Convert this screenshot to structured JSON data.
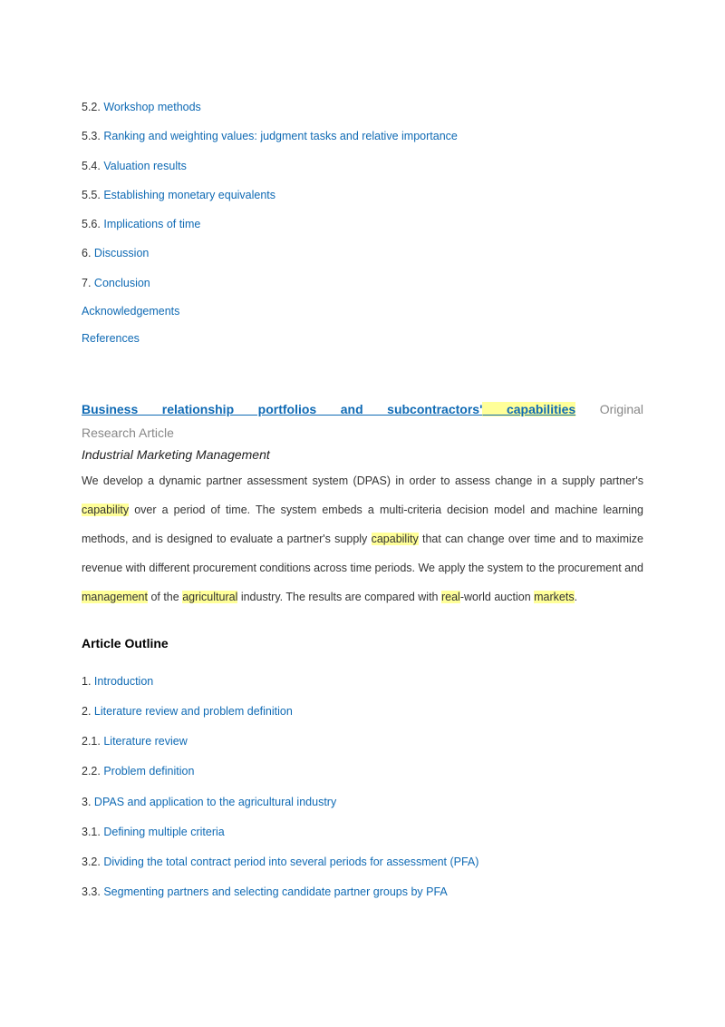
{
  "colors": {
    "link": "#0f6ab4",
    "body_text": "#333333",
    "muted": "#888888",
    "highlight_bg": "#ffff99",
    "background": "#ffffff"
  },
  "top_outline": [
    {
      "num": "5.2.",
      "label": "Workshop methods"
    },
    {
      "num": "5.3.",
      "label": "Ranking and weighting values: judgment tasks and relative importance"
    },
    {
      "num": "5.4.",
      "label": "Valuation results"
    },
    {
      "num": "5.5.",
      "label": "Establishing monetary equivalents"
    },
    {
      "num": "5.6.",
      "label": "Implications of time"
    },
    {
      "num": "6.",
      "label": "Discussion"
    },
    {
      "num": "7.",
      "label": "Conclusion"
    }
  ],
  "top_outline_tail": {
    "ack": "Acknowledgements",
    "refs": "References"
  },
  "article": {
    "title_pre": "Business relationship portfolios and subcontractors'",
    "title_hl": " capabilities",
    "subtype_inline": " Original",
    "subtype_line2": "Research Article",
    "journal": "Industrial Marketing Management",
    "abstract_parts": {
      "p1": "We develop a dynamic partner assessment system (DPAS) in order to assess change in a supply partner's ",
      "hl1": "capability",
      "p2": " over a period of time. The system embeds a multi-criteria decision model and machine learning methods, and is designed to evaluate a partner's supply ",
      "hl2": "capability",
      "p3": " that can change over time and to maximize revenue with different procurement conditions across time periods. We apply the system to the procurement and ",
      "hl3": "management",
      "p4": " of the ",
      "hl4": "agricultural",
      "p5": " industry. The results are compared with ",
      "hl5": "real",
      "p6": "-world auction ",
      "hl6": "markets",
      "p7": "."
    }
  },
  "outline_heading": "Article Outline",
  "bottom_outline": [
    {
      "num": "1.",
      "label": "Introduction"
    },
    {
      "num": "2.",
      "label": "Literature review and problem definition"
    },
    {
      "num": "2.1.",
      "label": "Literature review"
    },
    {
      "num": "2.2.",
      "label": "Problem definition"
    },
    {
      "num": "3.",
      "label": "DPAS and application to the agricultural industry"
    },
    {
      "num": "3.1.",
      "label": "Defining multiple criteria"
    },
    {
      "num": "3.2.",
      "label": "Dividing the total contract period into several periods for assessment (PFA)"
    },
    {
      "num": "3.3.",
      "label": "Segmenting partners and selecting candidate partner groups by PFA"
    }
  ]
}
